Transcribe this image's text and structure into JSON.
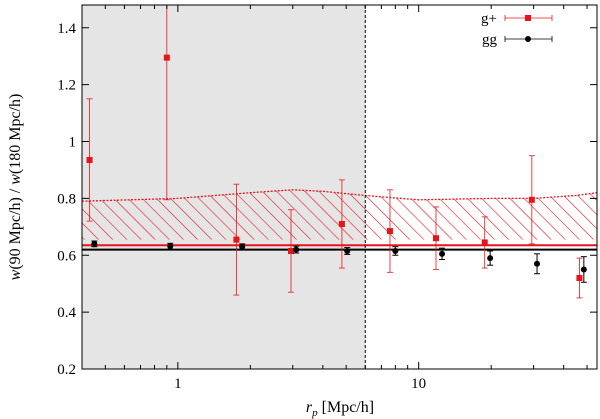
{
  "chart_data": {
    "type": "scatter",
    "xscale": "log",
    "xlim": [
      0.4,
      55
    ],
    "ylim": [
      0.2,
      1.48
    ],
    "xlabel": {
      "main": "r",
      "sub": "p",
      "unit": " [Mpc/h]"
    },
    "ylabel": {
      "w1": "w",
      "mid": "(90 Mpc/h) / ",
      "w2": "w",
      "end": "(180 Mpc/h)"
    },
    "xtick_values": [
      1,
      10
    ],
    "xtick_labels": [
      "1",
      "10"
    ],
    "ytick_values": [
      0.2,
      0.4,
      0.6,
      0.8,
      1.0,
      1.2,
      1.4
    ],
    "ytick_labels": [
      "0.2",
      "0.4",
      "0.6",
      "0.8",
      "1",
      "1.2",
      "1.4"
    ],
    "shaded_region": {
      "x_from": 0.4,
      "x_to": 6,
      "color": "#e5e5e5"
    },
    "vertical_line": {
      "x": 6,
      "style": "dashed"
    },
    "series": [
      {
        "name": "g+",
        "color": "#e8141a",
        "marker": "square",
        "x": [
          0.43,
          0.9,
          1.75,
          2.95,
          4.8,
          7.6,
          11.8,
          18.8,
          29.5,
          46.5
        ],
        "y": [
          0.935,
          1.295,
          0.655,
          0.615,
          0.71,
          0.685,
          0.66,
          0.645,
          0.795,
          0.52
        ],
        "err": [
          0.215,
          0.5,
          0.195,
          0.145,
          0.155,
          0.145,
          0.11,
          0.09,
          0.155,
          0.07
        ]
      },
      {
        "name": "gg",
        "color": "#000000",
        "marker": "circle",
        "x": [
          0.45,
          0.93,
          1.85,
          3.1,
          5.05,
          8.0,
          12.5,
          19.8,
          31.0,
          48.5
        ],
        "y": [
          0.64,
          0.632,
          0.63,
          0.62,
          0.615,
          0.615,
          0.605,
          0.59,
          0.57,
          0.55
        ],
        "err": [
          0.01,
          0.01,
          0.01,
          0.012,
          0.012,
          0.015,
          0.02,
          0.025,
          0.035,
          0.045
        ]
      }
    ],
    "band": {
      "color": "#e8141a",
      "pattern": "diagonal-hatch",
      "x": [
        0.4,
        1,
        2,
        3,
        4,
        6,
        10,
        20,
        30,
        45,
        55
      ],
      "upper": [
        0.79,
        0.8,
        0.82,
        0.83,
        0.825,
        0.81,
        0.795,
        0.8,
        0.8,
        0.81,
        0.82
      ],
      "lower": [
        0.655,
        0.655,
        0.655,
        0.655,
        0.655,
        0.655,
        0.655,
        0.655,
        0.655,
        0.655,
        0.655
      ]
    },
    "reference_lines": [
      {
        "name": "gg-reference",
        "y": 0.62,
        "color": "#000000"
      },
      {
        "name": "g+-reference",
        "y": 0.635,
        "color": "#e8141a"
      }
    ],
    "legend_position": "top-right"
  }
}
